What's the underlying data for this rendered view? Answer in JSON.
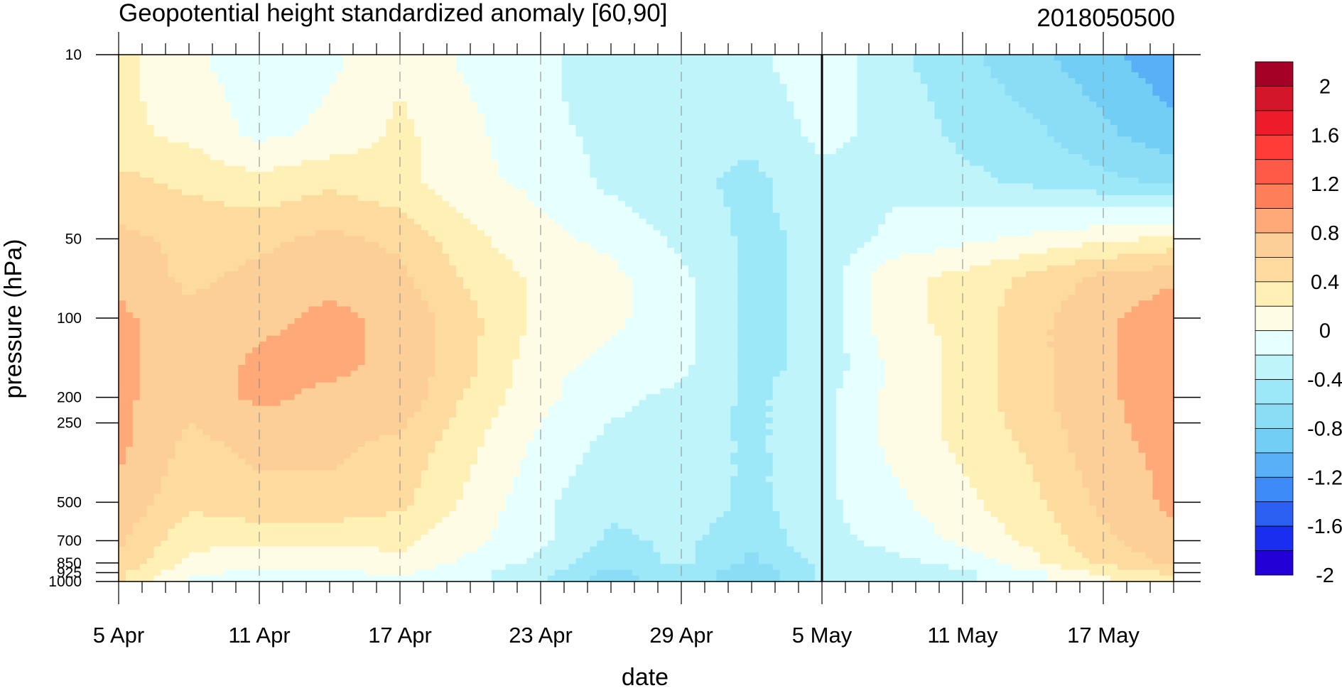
{
  "chart_data": {
    "type": "heatmap",
    "title": "Geopotential height standardized anomaly [60,90]",
    "subtitle": "2018050500",
    "xlabel": "date",
    "ylabel": "pressure (hPa)",
    "x_ticks": [
      "5 Apr",
      "11 Apr",
      "17 Apr",
      "23 Apr",
      "29 Apr",
      "5 May",
      "11 May",
      "17 May"
    ],
    "x_range": [
      "5 Apr",
      "20 May"
    ],
    "y_ticks": [
      "10",
      "50",
      "100",
      "200",
      "250",
      "500",
      "700",
      "850",
      "925",
      "1000"
    ],
    "y_range": [
      1000,
      10
    ],
    "y_scale": "log, reversed",
    "reference_line": "5 May",
    "grid": "dashed vertical lines at x ticks",
    "colorbar": {
      "position": "right",
      "tick_labels": [
        "2",
        "1.6",
        "1.2",
        "0.8",
        "0.4",
        "0",
        "-0.4",
        "-0.8",
        "-1.2",
        "-1.6",
        "-2"
      ],
      "levels": [
        2.0,
        1.8,
        1.6,
        1.4,
        1.2,
        1.0,
        0.8,
        0.6,
        0.4,
        0.2,
        0.0,
        -0.2,
        -0.4,
        -0.6,
        -0.8,
        -1.0,
        -1.2,
        -1.4,
        -1.6,
        -1.8,
        -2.0
      ],
      "colors": [
        "#a50026",
        "#d31628",
        "#ec1c2a",
        "#ff3c38",
        "#ff5a47",
        "#ff7f5a",
        "#ffa878",
        "#fdcf98",
        "#fdda9e",
        "#fff0b6",
        "#fffce6",
        "#e6ffff",
        "#bff4fb",
        "#9de8f8",
        "#8bddf6",
        "#72cef5",
        "#58b0f7",
        "#3d8bf6",
        "#2a5ff2",
        "#1a2ef0",
        "#2200d6"
      ]
    },
    "grid_x_days": [
      0,
      3,
      6,
      9,
      12,
      15,
      18,
      21,
      24,
      27,
      30,
      33,
      36,
      39,
      42,
      45
    ],
    "grid_y_levels": [
      10,
      20,
      30,
      50,
      70,
      100,
      150,
      200,
      300,
      500,
      700,
      850,
      925,
      1000
    ],
    "values": [
      [
        0.05,
        -0.15,
        -0.35,
        -0.25,
        -0.05,
        -0.25,
        -0.35,
        -0.55,
        -0.55,
        -0.45,
        -0.25,
        -0.55,
        -0.75,
        -0.95,
        -1.15,
        -1.35
      ],
      [
        0.05,
        -0.05,
        -0.25,
        -0.15,
        0.05,
        -0.15,
        -0.35,
        -0.45,
        -0.55,
        -0.55,
        -0.35,
        -0.45,
        -0.65,
        -0.75,
        -0.95,
        -1.15
      ],
      [
        0.25,
        0.15,
        0.05,
        0.15,
        0.05,
        -0.15,
        -0.25,
        -0.45,
        -0.55,
        -0.65,
        -0.45,
        -0.45,
        -0.55,
        -0.65,
        -0.75,
        -0.85
      ],
      [
        0.45,
        0.35,
        0.35,
        0.45,
        0.35,
        0.05,
        -0.15,
        -0.25,
        -0.45,
        -0.65,
        -0.55,
        -0.35,
        -0.25,
        -0.15,
        -0.05,
        0.05
      ],
      [
        0.55,
        0.35,
        0.45,
        0.55,
        0.45,
        0.15,
        -0.05,
        -0.15,
        -0.35,
        -0.65,
        -0.55,
        -0.05,
        0.05,
        0.25,
        0.45,
        0.55
      ],
      [
        0.65,
        0.45,
        0.55,
        0.65,
        0.55,
        0.25,
        -0.05,
        -0.15,
        -0.35,
        -0.65,
        -0.55,
        -0.05,
        0.05,
        0.35,
        0.55,
        0.75
      ],
      [
        0.65,
        0.45,
        0.65,
        0.65,
        0.55,
        0.25,
        -0.15,
        -0.25,
        -0.35,
        -0.65,
        -0.55,
        -0.15,
        0.05,
        0.35,
        0.55,
        0.75
      ],
      [
        0.65,
        0.45,
        0.65,
        0.55,
        0.55,
        0.15,
        -0.15,
        -0.35,
        -0.45,
        -0.65,
        -0.45,
        -0.15,
        0.05,
        0.35,
        0.55,
        0.75
      ],
      [
        0.65,
        0.35,
        0.45,
        0.45,
        0.35,
        0.05,
        -0.25,
        -0.45,
        -0.45,
        -0.65,
        -0.45,
        -0.15,
        0.05,
        0.25,
        0.55,
        0.65
      ],
      [
        0.55,
        0.25,
        0.35,
        0.35,
        0.25,
        -0.05,
        -0.35,
        -0.55,
        -0.45,
        -0.65,
        -0.45,
        -0.25,
        -0.05,
        0.15,
        0.45,
        0.65
      ],
      [
        0.45,
        0.05,
        0.05,
        0.05,
        0.05,
        -0.15,
        -0.35,
        -0.65,
        -0.55,
        -0.75,
        -0.45,
        -0.35,
        -0.15,
        0.05,
        0.35,
        0.55
      ],
      [
        0.35,
        -0.05,
        -0.15,
        -0.15,
        -0.05,
        -0.25,
        -0.45,
        -0.75,
        -0.55,
        -0.85,
        -0.55,
        -0.45,
        -0.35,
        -0.05,
        0.25,
        0.45
      ],
      [
        0.25,
        -0.15,
        -0.25,
        -0.25,
        -0.15,
        -0.35,
        -0.55,
        -0.85,
        -0.65,
        -0.95,
        -0.55,
        -0.45,
        -0.45,
        -0.25,
        0.05,
        0.25
      ],
      [
        0.25,
        -0.25,
        -0.35,
        -0.35,
        -0.25,
        -0.35,
        -0.55,
        -0.95,
        -0.65,
        -0.95,
        -0.55,
        -0.45,
        -0.45,
        -0.25,
        -0.05,
        0.05
      ]
    ]
  }
}
